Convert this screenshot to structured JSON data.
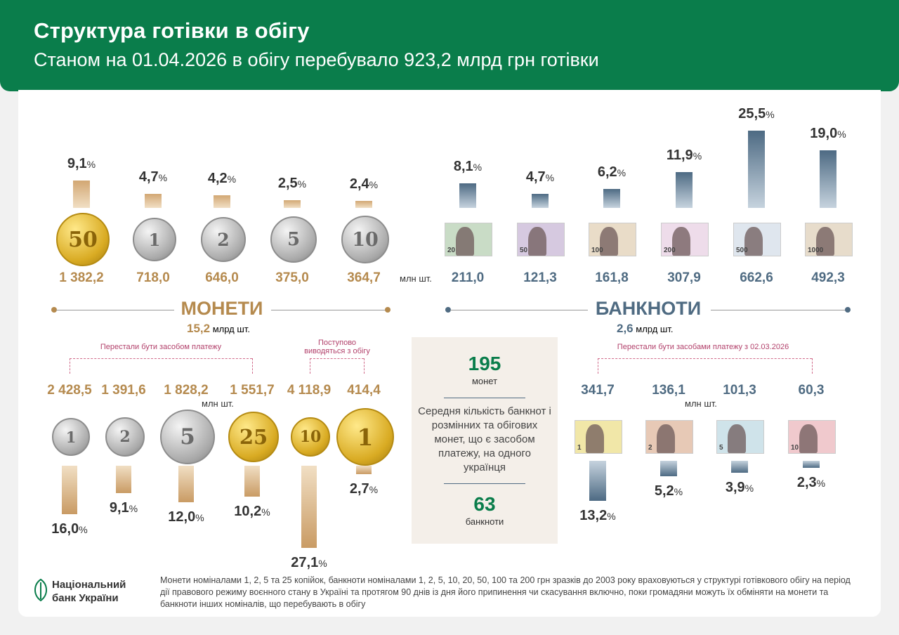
{
  "header": {
    "title": "Структура готівки в обігу",
    "subtitle": "Станом на 01.04.2026 в обігу перебувало 923,2 млрд грн готівки"
  },
  "colors": {
    "green": "#0a7d4b",
    "gold": "#b58a4e",
    "blue": "#4f6b82",
    "pink": "#b2416b"
  },
  "percent_sign": "%",
  "unit_pcs": "млн шт.",
  "coins_section": {
    "title": "МОНЕТИ",
    "total_value": "15,2",
    "total_unit": "млрд шт."
  },
  "banknotes_section": {
    "title": "БАНКНОТИ",
    "total_value": "2,6",
    "total_unit": "млрд шт."
  },
  "notes": {
    "coins_stopped": "Перестали бути засобом платежу",
    "coins_phasing": "Поступово виводяться з обігу",
    "notes_stopped": "Перестали бути засобами платежу з 02.03.2026"
  },
  "center_box": {
    "coins_count": "195",
    "coins_label": "монет",
    "description": "Середня кількість банкнот і розмінних та обігових монет, що є засобом платежу, на одного українця",
    "notes_count": "63",
    "notes_label": "банкноти"
  },
  "footer": {
    "logo_line1": "Національний",
    "logo_line2": "банк України",
    "text": "Монети номіналами 1, 2, 5 та 25 копійок, банкноти номіналами 1, 2, 5, 10, 20, 50, 100 та 200 грн зразків до 2003 року враховуються у структурі готівкового обігу на період дії правового режиму воєнного стану в Україні та протягом 90 днів із дня його припинення чи скасування включно, поки громадяни можуть їх обміняти на монети та банкноти інших номіналів, що перебувають в обігу"
  },
  "chart_data": [
    {
      "type": "bar",
      "name": "current_coins",
      "categories": [
        "50 копійок",
        "1 гривня",
        "2 гривні",
        "5 гривень",
        "10 гривень"
      ],
      "coin_faces": [
        "50",
        "1",
        "2",
        "5",
        "10"
      ],
      "percent": [
        9.1,
        4.7,
        4.2,
        2.5,
        2.4
      ],
      "percent_labels": [
        "9,1",
        "4,7",
        "4,2",
        "2,5",
        "2,4"
      ],
      "count_mln": [
        1382.2,
        718.0,
        646.0,
        375.0,
        364.7
      ],
      "count_labels": [
        "1 382,2",
        "718,0",
        "646,0",
        "375,0",
        "364,7"
      ],
      "colors": [
        "gold",
        "silver",
        "silver",
        "silver",
        "silver"
      ]
    },
    {
      "type": "bar",
      "name": "current_banknotes",
      "categories": [
        "20",
        "50",
        "100",
        "200",
        "500",
        "1000"
      ],
      "percent": [
        8.1,
        4.7,
        6.2,
        11.9,
        25.5,
        19.0
      ],
      "percent_labels": [
        "8,1",
        "4,7",
        "6,2",
        "11,9",
        "25,5",
        "19,0"
      ],
      "count_mln": [
        211.0,
        121.3,
        161.8,
        307.9,
        662.6,
        492.3
      ],
      "count_labels": [
        "211,0",
        "121,3",
        "161,8",
        "307,9",
        "662,6",
        "492,3"
      ],
      "note_colors": [
        "#c9dcc6",
        "#d6c9e0",
        "#e9dcc8",
        "#eedcea",
        "#dfe6ee",
        "#e7dccb"
      ]
    },
    {
      "type": "bar",
      "name": "old_coins",
      "categories": [
        "1 копійка",
        "2 копійки",
        "5 копійок",
        "25 копійок",
        "10 копійок",
        "1 гривня (старий)"
      ],
      "coin_faces": [
        "1",
        "2",
        "5",
        "25",
        "10",
        "1"
      ],
      "percent": [
        16.0,
        9.1,
        12.0,
        10.2,
        27.1,
        2.7
      ],
      "percent_labels": [
        "16,0",
        "9,1",
        "12,0",
        "10,2",
        "27,1",
        "2,7"
      ],
      "count_mln": [
        2428.5,
        1391.6,
        1828.2,
        1551.7,
        4118.9,
        414.4
      ],
      "count_labels": [
        "2 428,5",
        "1 391,6",
        "1 828,2",
        "1 551,7",
        "4 118,9",
        "414,4"
      ],
      "colors": [
        "silver",
        "silver",
        "silver",
        "gold",
        "gold",
        "gold"
      ]
    },
    {
      "type": "bar",
      "name": "old_banknotes",
      "categories": [
        "1",
        "2",
        "5",
        "10"
      ],
      "percent": [
        13.2,
        5.2,
        3.9,
        2.3
      ],
      "percent_labels": [
        "13,2",
        "5,2",
        "3,9",
        "2,3"
      ],
      "count_mln": [
        341.7,
        136.1,
        101.3,
        60.3
      ],
      "count_labels": [
        "341,7",
        "136,1",
        "101,3",
        "60,3"
      ],
      "note_colors": [
        "#f1e7a8",
        "#e7c9b6",
        "#cfe3ea",
        "#f0c9cd"
      ]
    }
  ]
}
